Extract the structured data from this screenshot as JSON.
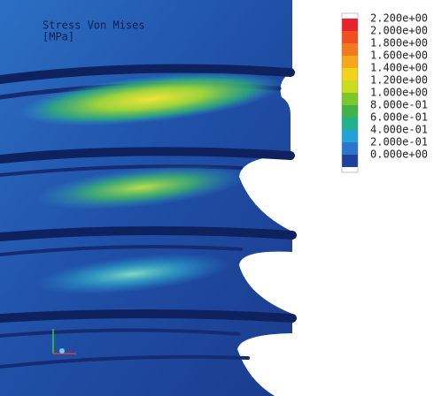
{
  "title": "Stress Von Mises",
  "unit": "[MPa]",
  "legend": {
    "labels": [
      "2.200e+00",
      "2.000e+00",
      "1.800e+00",
      "1.600e+00",
      "1.400e+00",
      "1.200e+00",
      "1.000e+00",
      "8.000e-01",
      "6.000e-01",
      "4.000e-01",
      "2.000e-01",
      "0.000e+00"
    ],
    "colors": [
      "#e8222a",
      "#f04f20",
      "#f27a1c",
      "#f6a81c",
      "#f3d21a",
      "#c9dc1e",
      "#7cc72a",
      "#3fb24a",
      "#22b08e",
      "#22a3d8",
      "#2b75cc",
      "#1f3f9c"
    ]
  }
}
